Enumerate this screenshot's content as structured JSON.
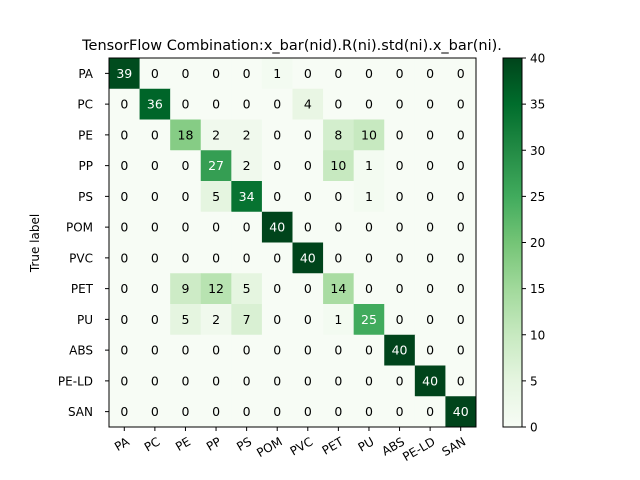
{
  "chart_data": {
    "type": "heatmap",
    "title": "TensorFlow Combination:x_bar(nid).R(ni).std(ni).x_bar(ni).",
    "ylabel": "True label",
    "xlabel": "",
    "x_categories": [
      "PA",
      "PC",
      "PE",
      "PP",
      "PS",
      "POM",
      "PVC",
      "PET",
      "PU",
      "ABS",
      "PE-LD",
      "SAN"
    ],
    "y_categories": [
      "PA",
      "PC",
      "PE",
      "PP",
      "PS",
      "POM",
      "PVC",
      "PET",
      "PU",
      "ABS",
      "PE-LD",
      "SAN"
    ],
    "matrix": [
      [
        39,
        0,
        0,
        0,
        0,
        1,
        0,
        0,
        0,
        0,
        0,
        0
      ],
      [
        0,
        36,
        0,
        0,
        0,
        0,
        4,
        0,
        0,
        0,
        0,
        0
      ],
      [
        0,
        0,
        18,
        2,
        2,
        0,
        0,
        8,
        10,
        0,
        0,
        0
      ],
      [
        0,
        0,
        0,
        27,
        2,
        0,
        0,
        10,
        1,
        0,
        0,
        0
      ],
      [
        0,
        0,
        0,
        5,
        34,
        0,
        0,
        0,
        1,
        0,
        0,
        0
      ],
      [
        0,
        0,
        0,
        0,
        0,
        40,
        0,
        0,
        0,
        0,
        0,
        0
      ],
      [
        0,
        0,
        0,
        0,
        0,
        0,
        40,
        0,
        0,
        0,
        0,
        0
      ],
      [
        0,
        0,
        9,
        12,
        5,
        0,
        0,
        14,
        0,
        0,
        0,
        0
      ],
      [
        0,
        0,
        5,
        2,
        7,
        0,
        0,
        1,
        25,
        0,
        0,
        0
      ],
      [
        0,
        0,
        0,
        0,
        0,
        0,
        0,
        0,
        0,
        40,
        0,
        0
      ],
      [
        0,
        0,
        0,
        0,
        0,
        0,
        0,
        0,
        0,
        0,
        40,
        0
      ],
      [
        0,
        0,
        0,
        0,
        0,
        0,
        0,
        0,
        0,
        0,
        0,
        40
      ]
    ],
    "colorbar": {
      "min": 0,
      "max": 40,
      "ticks": [
        0,
        5,
        10,
        15,
        20,
        25,
        30,
        35,
        40
      ],
      "colormap": "Greens",
      "low_color": "#f7fcf5",
      "high_color": "#00441b"
    },
    "grid": false
  }
}
